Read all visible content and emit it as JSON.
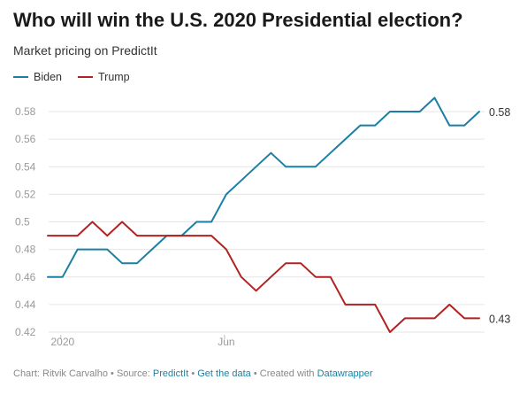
{
  "title": "Who will win the U.S. 2020 Presidential election?",
  "subtitle": "Market pricing on PredictIt",
  "legend": [
    {
      "name": "Biden",
      "color": "#1b7fa4"
    },
    {
      "name": "Trump",
      "color": "#b22222"
    }
  ],
  "footer": {
    "chart_by": "Chart: Ritvik Carvalho",
    "sep1": " • Source: ",
    "source": "PredictIt",
    "sep2": " • ",
    "get_data": "Get the data",
    "sep3": " • Created with ",
    "tool": "Datawrapper"
  },
  "chart_data": {
    "type": "line",
    "x_tick_labels": [
      {
        "label": "2020",
        "index": 1
      },
      {
        "label": "Jun",
        "index": 12
      }
    ],
    "ylim": [
      0.42,
      0.58
    ],
    "yticks": [
      0.42,
      0.44,
      0.46,
      0.48,
      0.5,
      0.52,
      0.54,
      0.56,
      0.58
    ],
    "ytick_labels": [
      "0.42",
      "0.44",
      "0.46",
      "0.48",
      "0.5",
      "0.52",
      "0.54",
      "0.56",
      "0.58"
    ],
    "grid": true,
    "series": [
      {
        "name": "Biden",
        "color": "#1b7fa4",
        "values": [
          0.46,
          0.46,
          0.48,
          0.48,
          0.48,
          0.47,
          0.47,
          0.48,
          0.49,
          0.49,
          0.5,
          0.5,
          0.52,
          0.53,
          0.54,
          0.55,
          0.54,
          0.54,
          0.54,
          0.55,
          0.56,
          0.57,
          0.57,
          0.58,
          0.58,
          0.58,
          0.59,
          0.57,
          0.57,
          0.58
        ],
        "end_label": "0.58"
      },
      {
        "name": "Trump",
        "color": "#b22222",
        "values": [
          0.49,
          0.49,
          0.49,
          0.5,
          0.49,
          0.5,
          0.49,
          0.49,
          0.49,
          0.49,
          0.49,
          0.49,
          0.48,
          0.46,
          0.45,
          0.46,
          0.47,
          0.47,
          0.46,
          0.46,
          0.44,
          0.44,
          0.44,
          0.42,
          0.43,
          0.43,
          0.43,
          0.44,
          0.43,
          0.43
        ],
        "end_label": "0.43"
      }
    ]
  }
}
